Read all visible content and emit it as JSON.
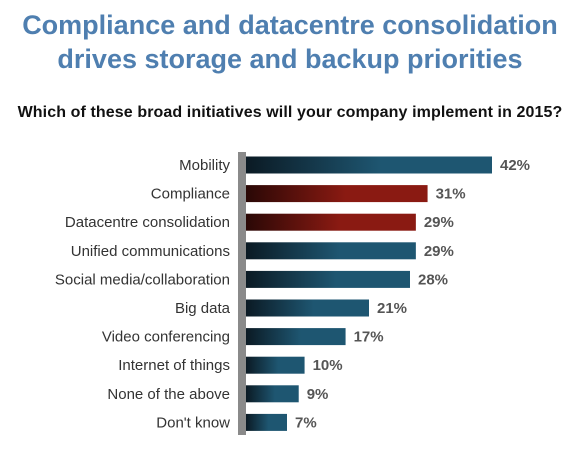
{
  "colors": {
    "title": "#4f7fb0",
    "blue_dark": "#0b1a24",
    "blue_light": "#1e5671",
    "red_dark": "#2a0806",
    "red_light": "#8a1a12",
    "axis": "#8a8a8a"
  },
  "chart_data": {
    "type": "bar",
    "orientation": "horizontal",
    "title": "Compliance and datacentre consolidation drives storage and backup priorities",
    "title_lines": [
      "Compliance and datacentre consolidation",
      "drives storage and backup priorities"
    ],
    "subtitle": "Which of these broad initiatives will your company implement in 2015?",
    "categories": [
      "Mobility",
      "Compliance",
      "Datacentre consolidation",
      "Unified communications",
      "Social media/collaboration",
      "Big data",
      "Video conferencing",
      "Internet of things",
      "None of the above",
      "Don't know"
    ],
    "values": [
      42,
      31,
      29,
      29,
      28,
      21,
      17,
      10,
      9,
      7
    ],
    "value_labels": [
      "42%",
      "31%",
      "29%",
      "29%",
      "28%",
      "21%",
      "17%",
      "10%",
      "9%",
      "7%"
    ],
    "highlight": [
      "blue",
      "red",
      "red",
      "blue",
      "blue",
      "blue",
      "blue",
      "blue",
      "blue",
      "blue"
    ],
    "unit": "%",
    "xlim": [
      0,
      50
    ],
    "grid": false,
    "legend": "none"
  }
}
